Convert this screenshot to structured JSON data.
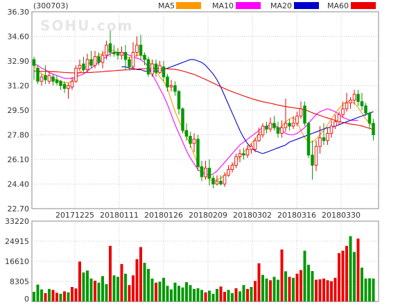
{
  "chart_data": [
    {
      "type": "candlestick",
      "stock_code": "(300703)",
      "watermark": "SOHU.com",
      "y_ticks": [
        "36.30",
        "34.60",
        "32.90",
        "31.20",
        "29.50",
        "27.80",
        "26.10",
        "24.40",
        "22.70"
      ],
      "ylim": [
        22.7,
        36.3
      ],
      "x_ticks": [
        "20171225",
        "20180111",
        "20180126",
        "20180209",
        "20180302",
        "20180316",
        "20180330"
      ],
      "legend": [
        {
          "name": "MA5",
          "color": "#ff9900"
        },
        {
          "name": "MA10",
          "color": "#ff00ff"
        },
        {
          "name": "MA20",
          "color": "#0000cc"
        },
        {
          "name": "MA60",
          "color": "#ee0000"
        }
      ],
      "colors": {
        "up": "#ee0000",
        "down": "#009900"
      },
      "candles": [
        [
          33.0,
          32.6,
          33.2,
          31.6
        ],
        [
          32.4,
          31.5,
          32.6,
          31.3
        ],
        [
          31.5,
          31.8,
          32.0,
          31.2
        ],
        [
          31.9,
          31.6,
          32.6,
          31.3
        ],
        [
          31.5,
          31.9,
          32.2,
          31.3
        ],
        [
          31.8,
          31.5,
          32.0,
          31.2
        ],
        [
          31.6,
          31.4,
          31.9,
          31.2
        ],
        [
          31.5,
          31.2,
          31.6,
          30.9
        ],
        [
          31.3,
          31.0,
          31.5,
          30.7
        ],
        [
          31.0,
          31.2,
          31.4,
          30.3
        ],
        [
          31.1,
          31.5,
          31.8,
          30.9
        ],
        [
          31.5,
          32.4,
          32.6,
          31.4
        ],
        [
          32.4,
          32.6,
          33.0,
          32.2
        ],
        [
          32.7,
          32.3,
          33.2,
          32.1
        ],
        [
          32.3,
          33.0,
          33.4,
          32.1
        ],
        [
          33.0,
          32.6,
          33.6,
          32.4
        ],
        [
          32.6,
          33.2,
          33.6,
          32.4
        ],
        [
          33.2,
          32.8,
          33.5,
          32.6
        ],
        [
          32.8,
          33.3,
          33.6,
          32.4
        ],
        [
          33.3,
          34.0,
          34.3,
          33.0
        ],
        [
          34.1,
          33.5,
          35.0,
          33.2
        ],
        [
          33.5,
          33.4,
          34.0,
          33.2
        ],
        [
          33.5,
          33.3,
          33.8,
          33.0
        ],
        [
          33.3,
          33.5,
          33.9,
          33.0
        ],
        [
          33.5,
          33.0,
          34.0,
          32.3
        ],
        [
          33.0,
          32.5,
          33.2,
          32.3
        ],
        [
          32.5,
          33.5,
          34.2,
          32.3
        ],
        [
          33.5,
          34.0,
          34.6,
          33.2
        ],
        [
          34.0,
          33.3,
          34.7,
          33.0
        ],
        [
          33.3,
          33.0,
          33.5,
          32.6
        ],
        [
          33.0,
          32.0,
          33.2,
          31.8
        ],
        [
          32.0,
          32.7,
          33.0,
          31.8
        ],
        [
          32.7,
          32.1,
          33.0,
          31.8
        ],
        [
          32.1,
          32.6,
          32.9,
          32.0
        ],
        [
          32.5,
          31.8,
          32.9,
          31.5
        ],
        [
          31.8,
          31.1,
          32.0,
          30.8
        ],
        [
          31.1,
          31.2,
          31.6,
          30.8
        ],
        [
          31.2,
          30.8,
          31.5,
          30.5
        ],
        [
          30.8,
          29.6,
          30.9,
          29.2
        ],
        [
          29.6,
          28.1,
          29.7,
          27.9
        ],
        [
          28.1,
          27.7,
          28.6,
          27.4
        ],
        [
          27.7,
          27.2,
          28.0,
          26.9
        ],
        [
          27.2,
          27.5,
          27.9,
          26.6
        ],
        [
          27.5,
          25.6,
          27.8,
          25.3
        ],
        [
          25.6,
          24.9,
          26.0,
          24.6
        ],
        [
          24.9,
          25.5,
          26.0,
          24.7
        ],
        [
          25.5,
          24.8,
          26.1,
          24.3
        ],
        [
          24.8,
          24.4,
          25.0,
          24.1
        ],
        [
          24.4,
          24.6,
          25.0,
          24.3
        ],
        [
          24.6,
          24.4,
          25.0,
          24.3
        ],
        [
          24.4,
          25.0,
          25.2,
          24.2
        ],
        [
          25.0,
          25.4,
          25.7,
          24.9
        ],
        [
          25.4,
          25.7,
          25.9,
          25.2
        ],
        [
          25.7,
          26.3,
          26.5,
          25.5
        ],
        [
          26.3,
          26.5,
          26.8,
          25.9
        ],
        [
          26.5,
          26.4,
          26.9,
          26.1
        ],
        [
          26.4,
          26.8,
          27.1,
          26.2
        ],
        [
          26.8,
          27.0,
          27.2,
          26.5
        ],
        [
          26.8,
          27.4,
          27.6,
          26.6
        ],
        [
          27.4,
          27.8,
          28.3,
          27.3
        ],
        [
          27.8,
          28.4,
          28.6,
          27.6
        ],
        [
          28.4,
          28.2,
          28.7,
          27.9
        ],
        [
          28.2,
          28.6,
          29.0,
          28.0
        ],
        [
          28.6,
          28.3,
          29.1,
          28.1
        ],
        [
          28.3,
          27.9,
          28.7,
          27.6
        ],
        [
          27.9,
          28.3,
          28.8,
          27.6
        ],
        [
          28.3,
          28.6,
          30.3,
          28.0
        ],
        [
          28.6,
          28.4,
          28.9,
          28.1
        ],
        [
          28.4,
          28.6,
          29.1,
          28.2
        ],
        [
          28.6,
          29.1,
          29.4,
          28.4
        ],
        [
          29.1,
          29.6,
          30.1,
          28.9
        ],
        [
          29.8,
          28.6,
          30.1,
          28.4
        ],
        [
          28.6,
          26.4,
          28.7,
          26.2
        ],
        [
          26.4,
          25.7,
          27.4,
          24.7
        ],
        [
          25.7,
          27.0,
          27.4,
          25.3
        ],
        [
          27.0,
          27.6,
          28.4,
          26.5
        ],
        [
          27.6,
          27.4,
          28.6,
          27.1
        ],
        [
          27.4,
          27.9,
          28.3,
          27.1
        ],
        [
          27.9,
          28.4,
          28.8,
          27.6
        ],
        [
          28.4,
          28.7,
          29.2,
          28.2
        ],
        [
          28.7,
          29.2,
          29.4,
          28.5
        ],
        [
          29.2,
          29.6,
          30.1,
          29.0
        ],
        [
          29.6,
          30.0,
          30.7,
          29.4
        ],
        [
          30.0,
          30.2,
          30.4,
          29.6
        ],
        [
          30.2,
          30.6,
          30.9,
          29.9
        ],
        [
          30.6,
          30.1,
          30.9,
          29.8
        ],
        [
          30.1,
          29.8,
          30.7,
          29.5
        ],
        [
          29.8,
          29.3,
          30.0,
          29.1
        ],
        [
          29.3,
          28.6,
          29.4,
          28.2
        ],
        [
          28.6,
          27.8,
          28.9,
          27.4
        ]
      ],
      "ma5": [
        32.6,
        32.3,
        32.0,
        31.9,
        31.8,
        31.7,
        31.6,
        31.5,
        31.4,
        31.4,
        31.5,
        31.8,
        32.1,
        32.3,
        32.6,
        32.9,
        33.1,
        33.3,
        33.4,
        33.6,
        33.7,
        33.6,
        33.5,
        33.4,
        33.2,
        33.1,
        33.2,
        33.3,
        33.3,
        33.2,
        32.9,
        32.6,
        32.2,
        31.8,
        31.5,
        31.0,
        30.2,
        29.4,
        28.8,
        28.2,
        27.7,
        27.1,
        26.4,
        25.8,
        25.3,
        25.0,
        24.7,
        24.6,
        24.7,
        24.8,
        25.0,
        25.3,
        25.7,
        26.0,
        26.3,
        26.6,
        26.9,
        27.2,
        27.5,
        27.9,
        28.1,
        28.2,
        28.3,
        28.3,
        28.2,
        28.4,
        28.7,
        28.9,
        29.0,
        28.7,
        28.1,
        27.6,
        27.3,
        27.3,
        27.5,
        27.8,
        28.1,
        28.5,
        28.9,
        29.3,
        29.6,
        29.9,
        30.1,
        30.1,
        30.0,
        29.7,
        29.3,
        28.9,
        28.6,
        28.4
      ],
      "ma10": [
        32.7,
        32.6,
        32.4,
        32.3,
        32.1,
        32.0,
        31.9,
        31.8,
        31.7,
        31.7,
        31.7,
        31.8,
        31.9,
        32.0,
        32.2,
        32.4,
        32.6,
        32.8,
        33.0,
        33.2,
        33.4,
        33.5,
        33.5,
        33.5,
        33.4,
        33.3,
        33.2,
        33.1,
        33.0,
        32.8,
        32.5,
        32.0,
        31.5,
        31.0,
        30.5,
        29.9,
        29.2,
        28.5,
        27.9,
        27.3,
        26.7,
        26.2,
        25.8,
        25.4,
        25.2,
        25.1,
        25.0,
        25.1,
        25.3,
        25.6,
        25.9,
        26.2,
        26.5,
        26.8,
        27.1,
        27.3,
        27.5,
        27.7,
        27.9,
        28.1,
        28.3,
        28.4,
        28.5,
        28.5,
        28.3,
        28.1,
        27.9,
        27.8,
        27.8,
        27.9,
        28.1,
        28.3,
        28.6,
        28.9,
        29.2,
        29.4,
        29.5,
        29.6,
        29.5,
        29.4,
        29.2,
        29.0,
        28.9,
        28.8,
        28.8,
        28.8
      ],
      "ma20": [
        32.5,
        32.5,
        32.4,
        32.4,
        32.3,
        32.3,
        32.2,
        32.2,
        32.2,
        32.2,
        32.2,
        32.3,
        32.4,
        32.5,
        32.6,
        32.7,
        32.8,
        32.9,
        33.0,
        33.0,
        32.9,
        32.8,
        32.6,
        32.3,
        32.0,
        31.6,
        31.1,
        30.5,
        29.9,
        29.3,
        28.7,
        28.1,
        27.6,
        27.2,
        26.9,
        26.7,
        26.6,
        26.5,
        26.6,
        26.7,
        26.8,
        26.9,
        27.0,
        27.1,
        27.3,
        27.4,
        27.5,
        27.6,
        27.7,
        27.8,
        27.9,
        28.0,
        28.1,
        28.2,
        28.3,
        28.3,
        28.4,
        28.5,
        28.6,
        28.7,
        28.8,
        28.9,
        29.0,
        29.1,
        29.2,
        29.3,
        29.4
      ]
    },
    {
      "type": "bar",
      "name": "volume",
      "y_ticks": [
        "33220",
        "24915",
        "16610",
        "8305",
        "0"
      ],
      "ylim": [
        0,
        33220
      ],
      "volumes": [
        [
          4000,
          0
        ],
        [
          7000,
          0
        ],
        [
          5000,
          0
        ],
        [
          3500,
          1
        ],
        [
          5200,
          0
        ],
        [
          4800,
          1
        ],
        [
          3600,
          1
        ],
        [
          3200,
          0
        ],
        [
          4200,
          1
        ],
        [
          3800,
          0
        ],
        [
          6000,
          1
        ],
        [
          5400,
          1
        ],
        [
          16500,
          1
        ],
        [
          12000,
          0
        ],
        [
          12800,
          0
        ],
        [
          9500,
          0
        ],
        [
          8600,
          1
        ],
        [
          7800,
          0
        ],
        [
          10500,
          0
        ],
        [
          7200,
          0
        ],
        [
          23000,
          1
        ],
        [
          10800,
          0
        ],
        [
          10200,
          0
        ],
        [
          15500,
          1
        ],
        [
          11500,
          0
        ],
        [
          6800,
          1
        ],
        [
          10800,
          1
        ],
        [
          17500,
          1
        ],
        [
          22500,
          1
        ],
        [
          16000,
          0
        ],
        [
          13500,
          0
        ],
        [
          9500,
          0
        ],
        [
          7800,
          1
        ],
        [
          8200,
          0
        ],
        [
          9800,
          0
        ],
        [
          6500,
          0
        ],
        [
          5000,
          0
        ],
        [
          7800,
          0
        ],
        [
          6500,
          0
        ],
        [
          5800,
          0
        ],
        [
          8000,
          0
        ],
        [
          6800,
          0
        ],
        [
          5200,
          0
        ],
        [
          5500,
          0
        ],
        [
          4800,
          0
        ],
        [
          3800,
          1
        ],
        [
          4500,
          0
        ],
        [
          3200,
          0
        ],
        [
          5200,
          0
        ],
        [
          6200,
          1
        ],
        [
          4000,
          1
        ],
        [
          4800,
          0
        ],
        [
          3500,
          0
        ],
        [
          5500,
          1
        ],
        [
          4200,
          0
        ],
        [
          6800,
          0
        ],
        [
          5200,
          1
        ],
        [
          6000,
          0
        ],
        [
          8500,
          1
        ],
        [
          15800,
          1
        ],
        [
          11000,
          0
        ],
        [
          9500,
          0
        ],
        [
          8800,
          1
        ],
        [
          10200,
          0
        ],
        [
          9000,
          0
        ],
        [
          21500,
          1
        ],
        [
          12500,
          0
        ],
        [
          10200,
          1
        ],
        [
          9800,
          0
        ],
        [
          11500,
          1
        ],
        [
          13000,
          1
        ],
        [
          21000,
          0
        ],
        [
          15200,
          0
        ],
        [
          12600,
          0
        ],
        [
          9000,
          1
        ],
        [
          9200,
          1
        ],
        [
          9500,
          1
        ],
        [
          8800,
          1
        ],
        [
          8400,
          1
        ],
        [
          9800,
          1
        ],
        [
          20000,
          1
        ],
        [
          21000,
          1
        ],
        [
          23000,
          1
        ],
        [
          27000,
          0
        ],
        [
          20500,
          0
        ],
        [
          26000,
          1
        ],
        [
          14000,
          0
        ],
        [
          9500,
          0
        ],
        [
          9600,
          0
        ],
        [
          9500,
          0
        ]
      ]
    }
  ]
}
